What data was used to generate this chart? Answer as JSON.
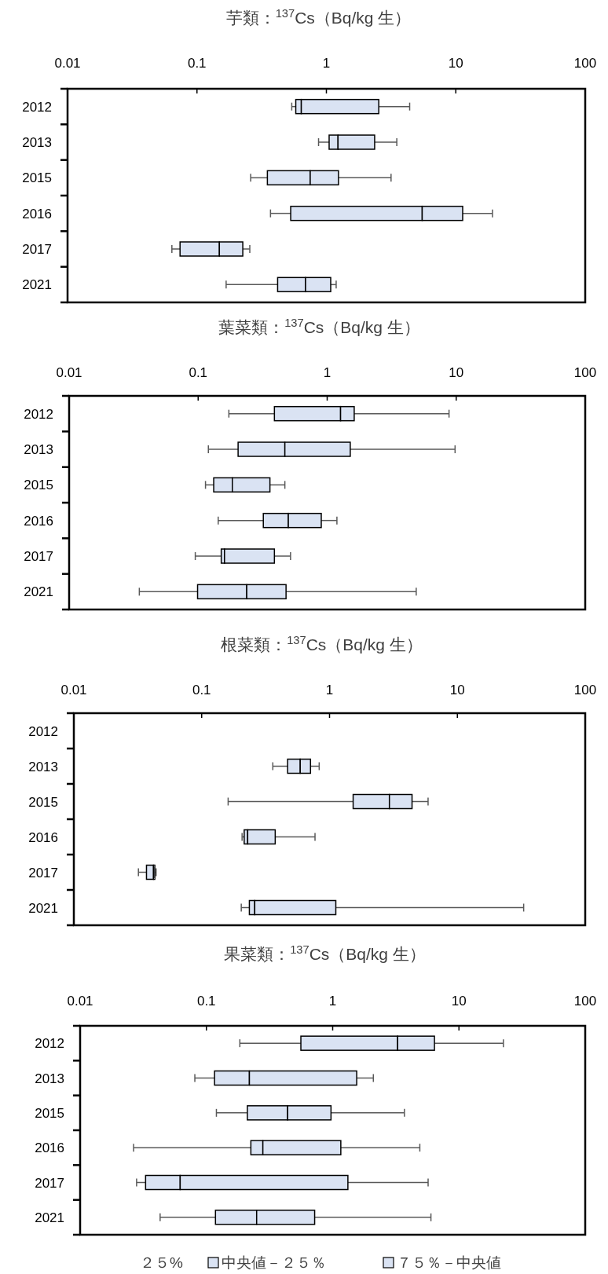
{
  "chart_data": [
    {
      "type": "box",
      "title": "芋類：$^{137}$Cs（Bq/kg 生）",
      "orientation": "horizontal",
      "log": "x",
      "color": "#dae3f3",
      "xlim": [
        0.01,
        100
      ],
      "xticks": [
        0.01,
        0.1,
        1,
        10,
        100
      ],
      "categories": [
        "2012",
        "2013",
        "2015",
        "2016",
        "2017",
        "2021"
      ],
      "boxes": [
        {
          "low": 0.54,
          "q1": 0.58,
          "median": 0.64,
          "q3": 2.54,
          "high": 4.4
        },
        {
          "low": 0.87,
          "q1": 1.05,
          "median": 1.23,
          "q3": 2.36,
          "high": 3.5
        },
        {
          "low": 0.26,
          "q1": 0.35,
          "median": 0.75,
          "q3": 1.24,
          "high": 3.16
        },
        {
          "low": 0.37,
          "q1": 0.53,
          "median": 5.5,
          "q3": 11.3,
          "high": 19.2
        },
        {
          "low": 0.064,
          "q1": 0.074,
          "median": 0.149,
          "q3": 0.226,
          "high": 0.256
        },
        {
          "low": 0.168,
          "q1": 0.42,
          "median": 0.69,
          "q3": 1.08,
          "high": 1.19
        }
      ]
    },
    {
      "type": "box",
      "title": "葉菜類：$^{137}$Cs（Bq/kg 生）",
      "orientation": "horizontal",
      "log": "x",
      "color": "#dae3f3",
      "xlim": [
        0.01,
        100
      ],
      "xticks": [
        0.01,
        0.1,
        1,
        10,
        100
      ],
      "categories": [
        "2012",
        "2013",
        "2015",
        "2016",
        "2017",
        "2021"
      ],
      "boxes": [
        {
          "low": 0.173,
          "q1": 0.39,
          "median": 1.27,
          "q3": 1.62,
          "high": 8.8
        },
        {
          "low": 0.12,
          "q1": 0.204,
          "median": 0.47,
          "q3": 1.51,
          "high": 9.8
        },
        {
          "low": 0.114,
          "q1": 0.132,
          "median": 0.184,
          "q3": 0.36,
          "high": 0.47
        },
        {
          "low": 0.143,
          "q1": 0.32,
          "median": 0.5,
          "q3": 0.9,
          "high": 1.19
        },
        {
          "low": 0.095,
          "q1": 0.151,
          "median": 0.16,
          "q3": 0.39,
          "high": 0.52
        },
        {
          "low": 0.035,
          "q1": 0.099,
          "median": 0.238,
          "q3": 0.48,
          "high": 4.9
        }
      ]
    },
    {
      "type": "box",
      "title": "根菜類：$^{137}$Cs（Bq/kg 生）",
      "orientation": "horizontal",
      "log": "x",
      "color": "#dae3f3",
      "xlim": [
        0.01,
        100
      ],
      "xticks": [
        0.01,
        0.1,
        1,
        10,
        100
      ],
      "categories": [
        "2012",
        "2013",
        "2015",
        "2016",
        "2017",
        "2021"
      ],
      "boxes": [
        null,
        {
          "low": 0.36,
          "q1": 0.47,
          "median": 0.59,
          "q3": 0.71,
          "high": 0.83
        },
        {
          "low": 0.161,
          "q1": 1.53,
          "median": 2.94,
          "q3": 4.42,
          "high": 5.9
        },
        {
          "low": 0.207,
          "q1": 0.215,
          "median": 0.229,
          "q3": 0.376,
          "high": 0.77
        },
        {
          "low": 0.032,
          "q1": 0.037,
          "median": 0.042,
          "q3": 0.043,
          "high": 0.044
        },
        {
          "low": 0.204,
          "q1": 0.236,
          "median": 0.26,
          "q3": 1.12,
          "high": 33
        }
      ]
    },
    {
      "type": "box",
      "title": "果菜類：$^{137}$Cs（Bq/kg 生）",
      "orientation": "horizontal",
      "log": "x",
      "color": "#dae3f3",
      "xlim": [
        0.01,
        100
      ],
      "xticks": [
        0.01,
        0.1,
        1,
        10,
        100
      ],
      "categories": [
        "2012",
        "2013",
        "2015",
        "2016",
        "2017",
        "2021"
      ],
      "boxes": [
        {
          "low": 0.184,
          "q1": 0.56,
          "median": 3.27,
          "q3": 6.4,
          "high": 22.5
        },
        {
          "low": 0.081,
          "q1": 0.116,
          "median": 0.219,
          "q3": 1.55,
          "high": 2.1
        },
        {
          "low": 0.12,
          "q1": 0.211,
          "median": 0.44,
          "q3": 0.97,
          "high": 3.7
        },
        {
          "low": 0.0265,
          "q1": 0.225,
          "median": 0.28,
          "q3": 1.16,
          "high": 4.9
        },
        {
          "low": 0.028,
          "q1": 0.033,
          "median": 0.062,
          "q3": 1.32,
          "high": 5.7
        },
        {
          "low": 0.043,
          "q1": 0.118,
          "median": 0.25,
          "q3": 0.72,
          "high": 6.0
        }
      ],
      "annotations": [
        "２５%",
        "中央値－２５％",
        "７５％－中央値"
      ]
    }
  ]
}
